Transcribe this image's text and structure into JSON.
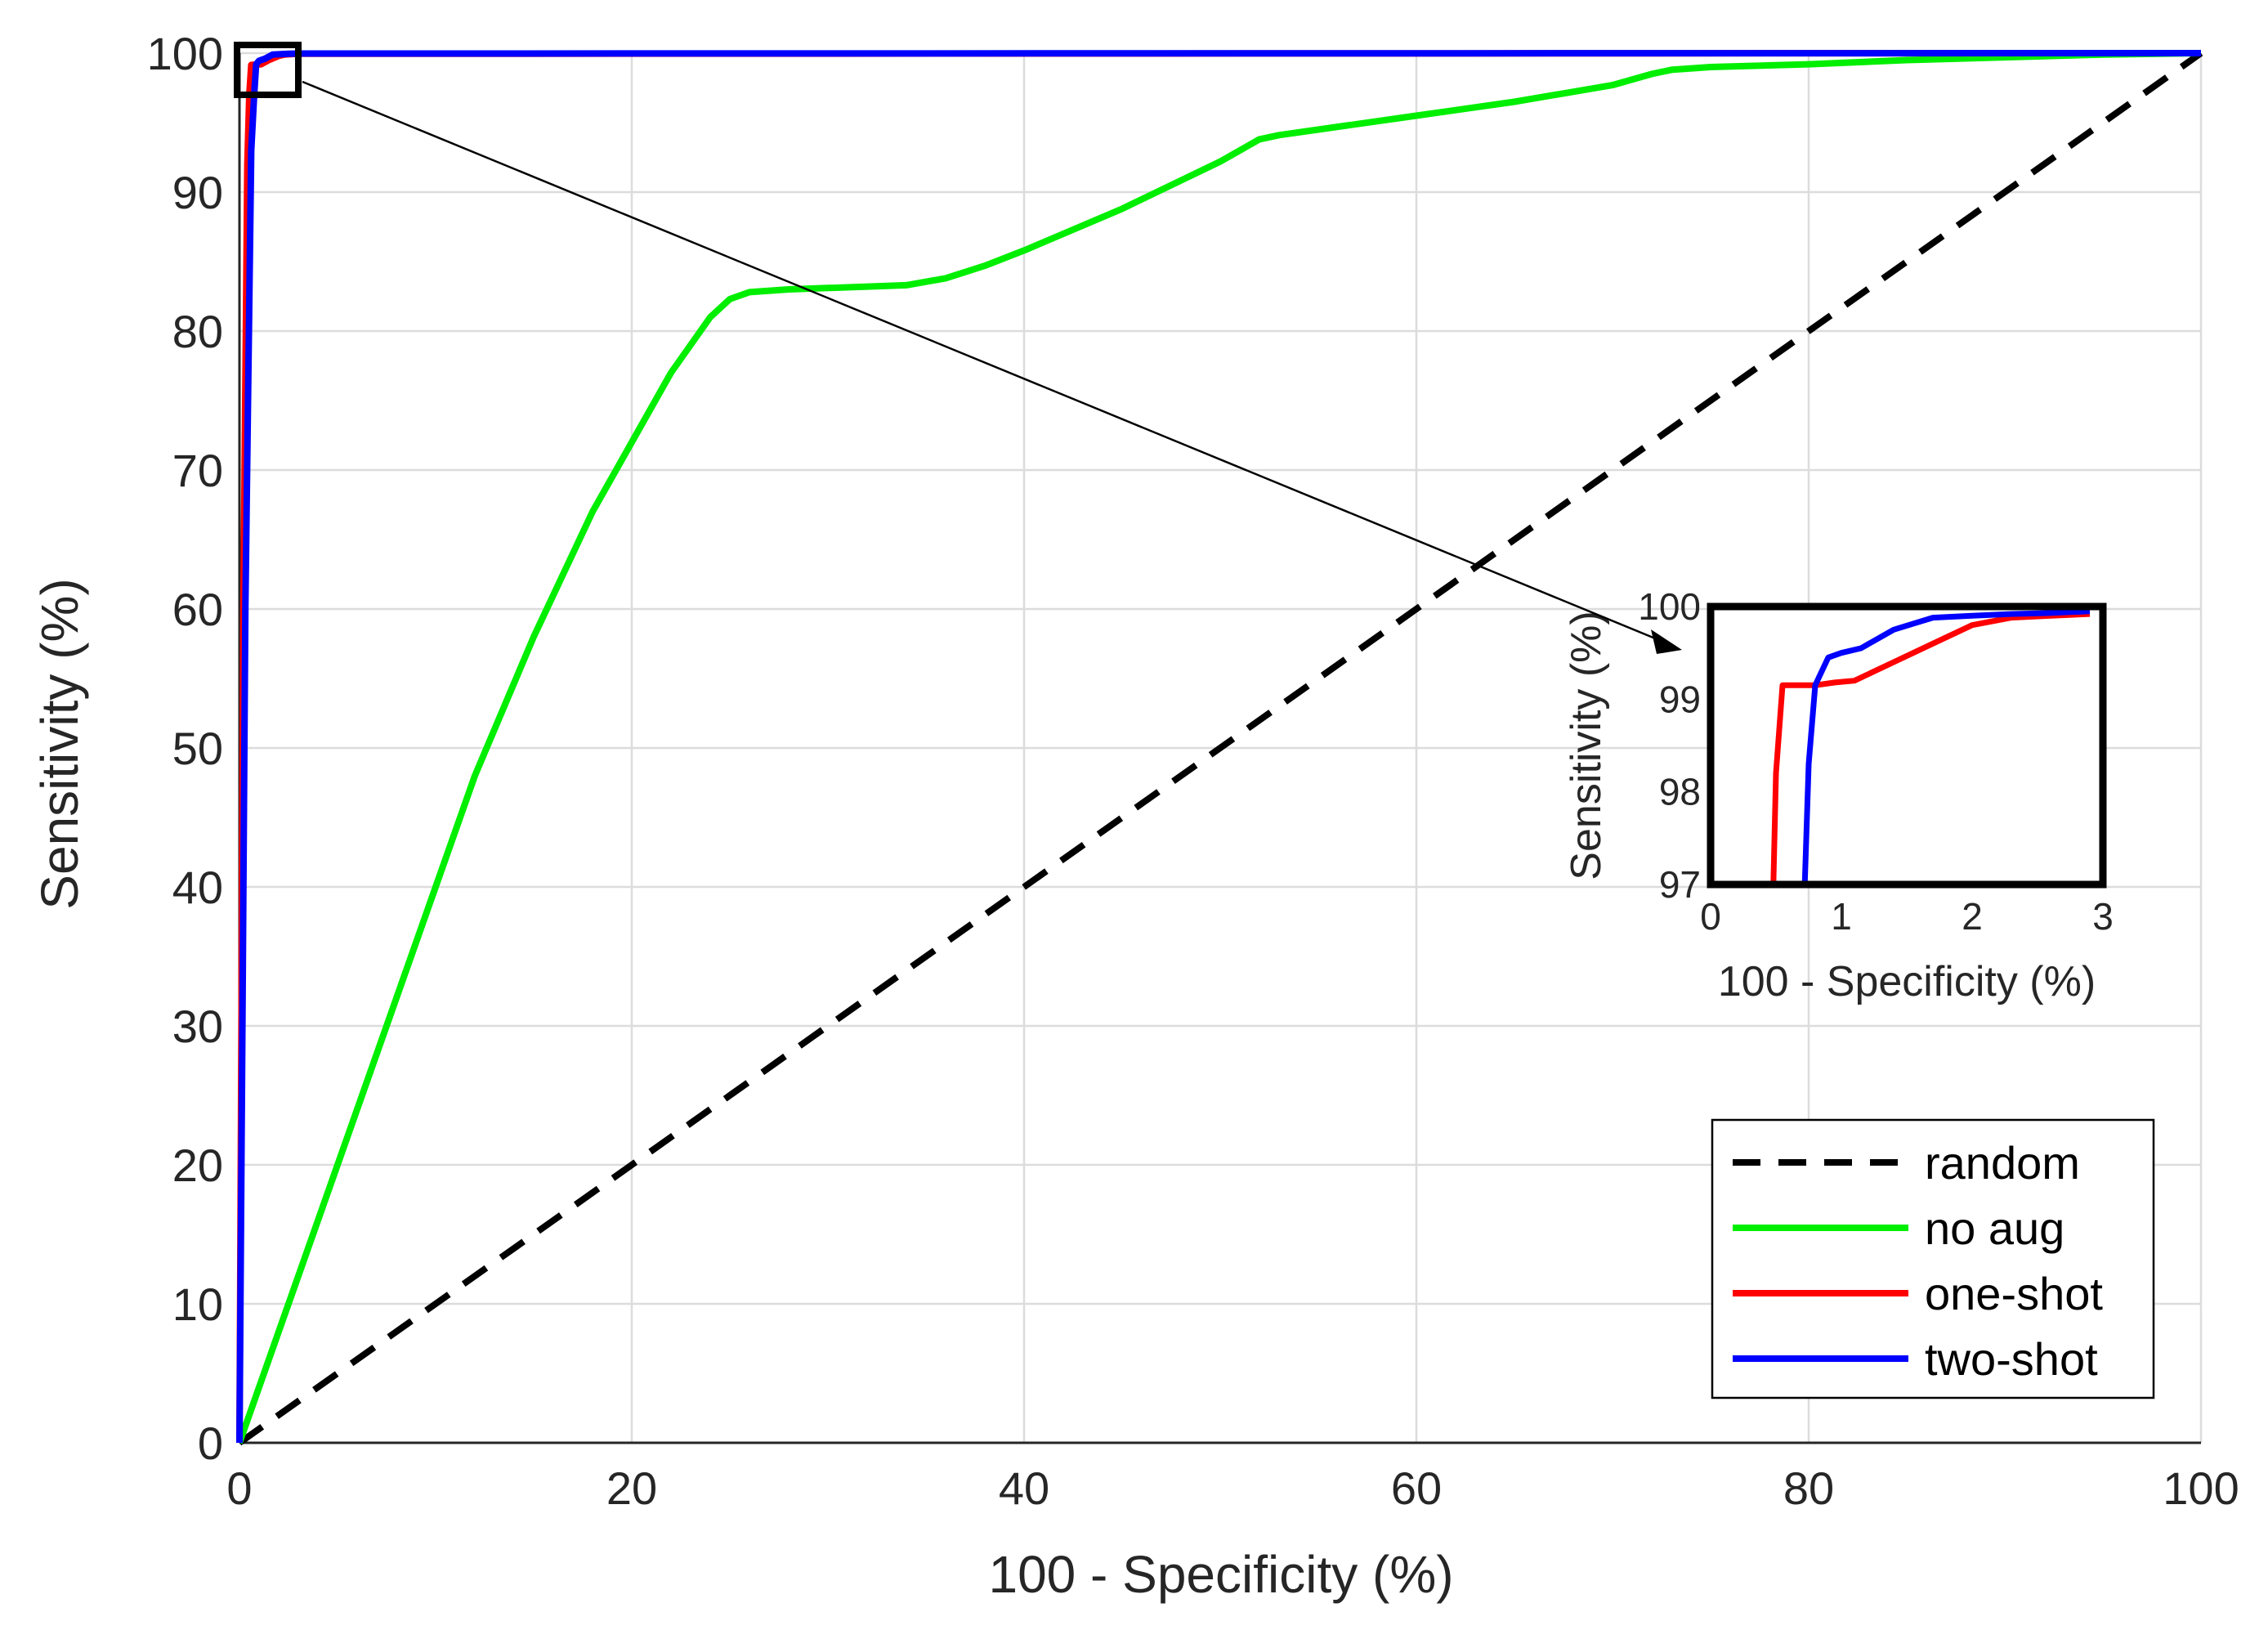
{
  "chart_data": [
    {
      "type": "line",
      "xlabel": "100 - Specificity (%)",
      "ylabel": "Sensitivity (%)",
      "xlim": [
        0,
        100
      ],
      "ylim": [
        0,
        100
      ],
      "xticks": [
        0,
        20,
        40,
        60,
        80,
        100
      ],
      "yticks": [
        0,
        10,
        20,
        30,
        40,
        50,
        60,
        70,
        80,
        90,
        100
      ],
      "grid": true,
      "legend_position": "bottom-right",
      "series": [
        {
          "name": "random",
          "color": "#000000",
          "dash": "dashed",
          "x": [
            0,
            100
          ],
          "y": [
            0,
            100
          ]
        },
        {
          "name": "no aug",
          "color": "#00ee00",
          "dash": "solid",
          "x": [
            0,
            2,
            5,
            8,
            10,
            12,
            15,
            18,
            20,
            22,
            24,
            25,
            26,
            28,
            30,
            32,
            34,
            36,
            38,
            40,
            45,
            50,
            52,
            53,
            55,
            60,
            65,
            70,
            72,
            73,
            75,
            80,
            85,
            90,
            95,
            100
          ],
          "y": [
            0,
            8,
            20,
            32,
            40,
            48,
            58,
            67,
            72,
            77,
            81,
            82.3,
            82.8,
            83,
            83.1,
            83.2,
            83.3,
            83.8,
            84.7,
            85.8,
            88.8,
            92.2,
            93.8,
            94.1,
            94.5,
            95.5,
            96.5,
            97.7,
            98.5,
            98.8,
            99,
            99.2,
            99.5,
            99.7,
            99.9,
            100
          ]
        },
        {
          "name": "one-shot",
          "color": "#ff0000",
          "dash": "solid",
          "x": [
            0,
            0.2,
            0.4,
            0.5,
            0.6,
            1.1,
            1.5,
            2,
            2.3,
            2.5,
            3,
            100
          ],
          "y": [
            0,
            60,
            92,
            97,
            99.15,
            99.2,
            99.5,
            99.8,
            99.9,
            99.92,
            99.95,
            100
          ]
        },
        {
          "name": "two-shot",
          "color": "#0000ff",
          "dash": "solid",
          "x": [
            0,
            0.3,
            0.6,
            0.75,
            0.85,
            1.0,
            1.3,
            1.7,
            2.5,
            3,
            100
          ],
          "y": [
            0,
            60,
            93,
            97,
            99.2,
            99.45,
            99.6,
            99.9,
            99.95,
            99.97,
            100
          ]
        }
      ]
    },
    {
      "type": "line",
      "xlabel": "100 - Specificity (%)",
      "ylabel": "Sensitivity (%)",
      "xlim": [
        0,
        3
      ],
      "ylim": [
        97,
        100
      ],
      "xticks": [
        0,
        1,
        2,
        3
      ],
      "yticks": [
        97,
        98,
        99,
        100
      ],
      "grid": false,
      "series": [
        {
          "name": "one-shot",
          "color": "#ff0000",
          "x": [
            0.48,
            0.5,
            0.55,
            0.6,
            0.8,
            0.95,
            1.1,
            1.4,
            1.7,
            2.0,
            2.3,
            2.6,
            2.9
          ],
          "y": [
            97,
            98.2,
            99.15,
            99.15,
            99.15,
            99.18,
            99.2,
            99.4,
            99.6,
            99.8,
            99.88,
            99.9,
            99.92
          ]
        },
        {
          "name": "two-shot",
          "color": "#0000ff",
          "x": [
            0.72,
            0.75,
            0.8,
            0.9,
            1.0,
            1.15,
            1.4,
            1.7,
            2.0,
            2.3,
            2.6,
            2.9
          ],
          "y": [
            97,
            98.3,
            99.15,
            99.45,
            99.5,
            99.55,
            99.75,
            99.88,
            99.9,
            99.92,
            99.93,
            99.95
          ]
        }
      ]
    }
  ],
  "legend": {
    "items": [
      {
        "label": "random",
        "color": "#000000",
        "dash": "dashed"
      },
      {
        "label": "no aug",
        "color": "#00ee00",
        "dash": "solid"
      },
      {
        "label": "one-shot",
        "color": "#ff0000",
        "dash": "solid"
      },
      {
        "label": "two-shot",
        "color": "#0000ff",
        "dash": "solid"
      }
    ]
  }
}
